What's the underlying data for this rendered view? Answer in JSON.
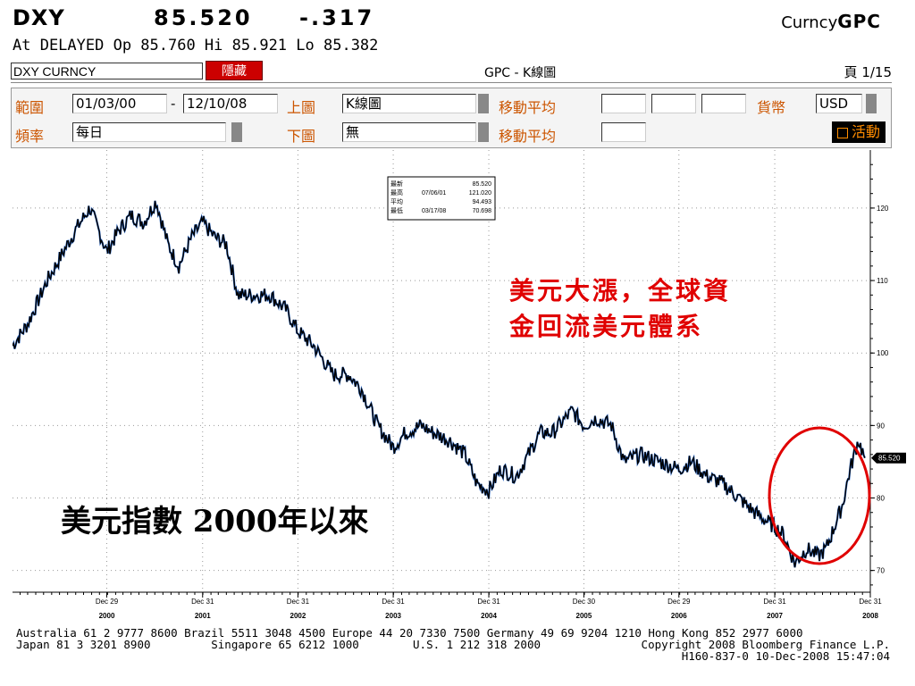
{
  "header": {
    "ticker": "DXY",
    "price": "85.520",
    "change": "-.317",
    "source_prefix": "Curncy",
    "source_code": "GPC",
    "quote_line": "At DELAYED  Op 85.760 Hi 85.921 Lo 85.382"
  },
  "toolbar": {
    "security": "DXY CURNCY",
    "hide_label": "隱藏",
    "chart_name": "GPC - K線圖",
    "page": "頁 1/15"
  },
  "settings": {
    "range_label": "範圍",
    "range_start": "01/03/00",
    "range_sep": "-",
    "range_end": "12/10/08",
    "upper_label": "上圖",
    "upper_value": "K線圖",
    "ma_label": "移動平均",
    "currency_label": "貨幣",
    "currency_value": "USD",
    "freq_label": "頻率",
    "freq_value": "每日",
    "lower_label": "下圖",
    "lower_value": "無",
    "ma2_label": "移動平均",
    "activity_label": "活動"
  },
  "stats": {
    "labels": [
      "最新",
      "最高",
      "平均",
      "最低"
    ],
    "dates": [
      "",
      "07/06/01",
      "",
      "03/17/08"
    ],
    "values": [
      "85.520",
      "121.020",
      "94.493",
      "70.698"
    ]
  },
  "annotations": {
    "red_line1": "美元大漲，全球資",
    "red_line2": "金回流美元體系",
    "black_text": "美元指數  2000年以來"
  },
  "chart_data": {
    "type": "line",
    "series": [
      {
        "name": "DXY",
        "x": [
          "2000-01-03",
          "2000-03-01",
          "2000-05-15",
          "2000-07-01",
          "2000-09-01",
          "2000-10-25",
          "2000-12-29",
          "2001-02-15",
          "2001-04-01",
          "2001-05-20",
          "2001-07-06",
          "2001-08-20",
          "2001-10-01",
          "2001-11-20",
          "2001-12-31",
          "2002-02-15",
          "2002-04-01",
          "2002-05-15",
          "2002-07-15",
          "2002-09-15",
          "2002-11-15",
          "2002-12-31",
          "2003-03-01",
          "2003-05-15",
          "2003-07-15",
          "2003-09-01",
          "2003-11-01",
          "2003-12-31",
          "2004-02-15",
          "2004-04-15",
          "2004-06-01",
          "2004-08-01",
          "2004-10-01",
          "2004-11-15",
          "2004-12-31",
          "2005-02-15",
          "2005-04-15",
          "2005-06-01",
          "2005-07-15",
          "2005-09-01",
          "2005-11-15",
          "2005-12-30",
          "2006-02-15",
          "2006-04-15",
          "2006-06-01",
          "2006-08-01",
          "2006-10-15",
          "2006-12-29",
          "2007-02-15",
          "2007-04-15",
          "2007-06-15",
          "2007-08-15",
          "2007-10-15",
          "2007-12-31",
          "2008-02-01",
          "2008-03-17",
          "2008-05-01",
          "2008-06-15",
          "2008-07-15",
          "2008-08-15",
          "2008-09-15",
          "2008-10-15",
          "2008-11-15",
          "2008-12-10"
        ],
        "values": [
          101,
          104,
          110,
          113,
          117,
          120,
          114,
          117,
          119,
          118,
          121,
          115,
          112,
          116,
          118,
          116,
          115,
          108,
          108,
          108,
          106,
          103,
          101,
          97,
          97,
          95,
          90,
          87,
          89,
          90,
          89,
          88,
          86,
          82,
          81,
          84,
          83,
          86,
          89,
          89,
          92,
          90,
          91,
          90,
          85,
          86,
          85,
          84,
          85,
          83,
          82,
          80,
          78,
          76,
          75,
          71,
          73,
          72,
          73,
          76,
          79,
          84,
          88,
          85.52
        ]
      }
    ],
    "ylim": [
      67,
      128
    ],
    "yticks": [
      70,
      80,
      90,
      100,
      110,
      120
    ],
    "x_major_ticks": [
      {
        "date": "2000-12-29",
        "month": "Dec 29",
        "year": "2000"
      },
      {
        "date": "2001-12-31",
        "month": "Dec 31",
        "year": "2001"
      },
      {
        "date": "2002-12-31",
        "month": "Dec 31",
        "year": "2002"
      },
      {
        "date": "2003-12-31",
        "month": "Dec 31",
        "year": "2003"
      },
      {
        "date": "2004-12-31",
        "month": "Dec 31",
        "year": "2004"
      },
      {
        "date": "2005-12-30",
        "month": "Dec 30",
        "year": "2005"
      },
      {
        "date": "2006-12-29",
        "month": "Dec 29",
        "year": "2006"
      },
      {
        "date": "2007-12-31",
        "month": "Dec 31",
        "year": "2007"
      },
      {
        "date": "2008-12-31",
        "month": "Dec 31",
        "year": "2008"
      }
    ],
    "last_price_label": "85.520",
    "grid": true
  },
  "footer": {
    "line1": "Australia 61 2 9777 8600 Brazil 5511 3048 4500 Europe 44 20 7330 7500 Germany 49 69 9204 1210 Hong Kong 852 2977 6000",
    "line2": "Japan 81 3 3201 8900         Singapore 65 6212 1000        U.S. 1 212 318 2000",
    "copyright": "Copyright 2008 Bloomberg Finance L.P.",
    "stamp": "H160-837-0 10-Dec-2008 15:47:04"
  },
  "colors": {
    "annotation_red": "#e00000",
    "label_orange": "#cc5500",
    "price_line": "#000000"
  }
}
